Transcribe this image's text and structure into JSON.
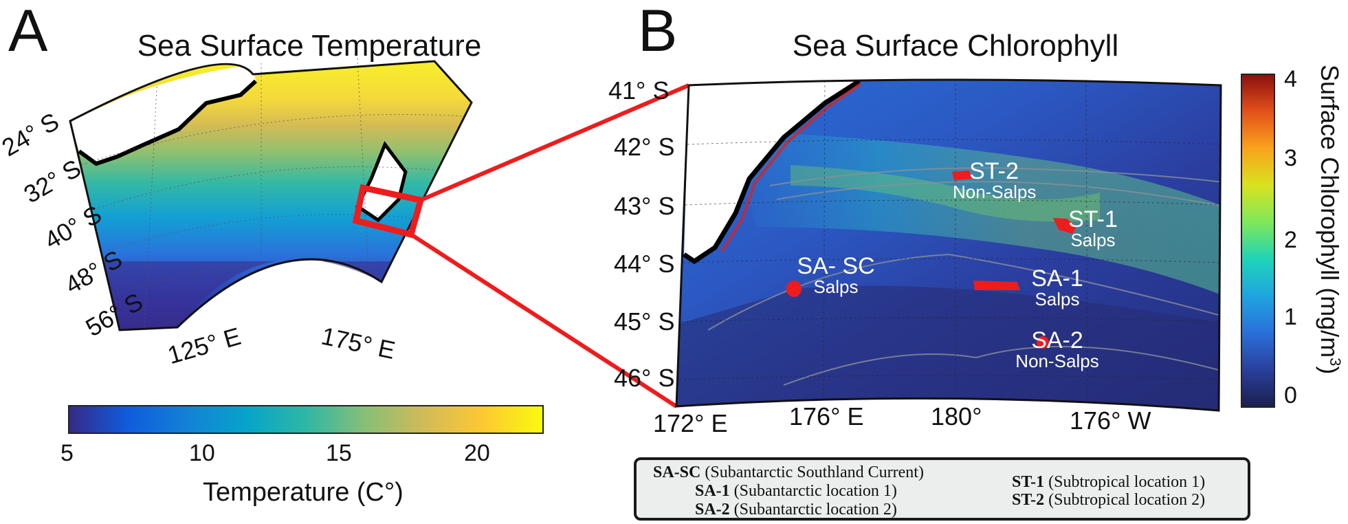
{
  "panel_a": {
    "letter": "A",
    "title": "Sea Surface Temperature",
    "lat_labels": [
      "24° S",
      "32° S",
      "40° S",
      "48° S",
      "56° S"
    ],
    "lon_labels": [
      "125° E",
      "175° E"
    ],
    "colorbar": {
      "ticks": [
        "5",
        "10",
        "15",
        "20"
      ],
      "label": "Temperature (C°)",
      "colors": [
        "#352a87",
        "#0f5cdd",
        "#1481d6",
        "#06a4ca",
        "#2eb7a4",
        "#87bf77",
        "#d1bb59",
        "#fec832",
        "#f9fb0e"
      ]
    }
  },
  "panel_b": {
    "letter": "B",
    "title": "Sea Surface Chlorophyll",
    "lat_labels": [
      "41° S",
      "42° S",
      "43° S",
      "44° S",
      "45° S",
      "46° S"
    ],
    "lon_labels": [
      "172° E",
      "176° E",
      "180°",
      "176° W"
    ],
    "colorbar": {
      "ticks": [
        "0",
        "1",
        "2",
        "3",
        "4"
      ],
      "label": "Surface Chlorophyll (mg/m",
      "label_sup": "3",
      "label_close": ")",
      "colors": [
        "#1b1f4d",
        "#2a3f9c",
        "#2a6fd9",
        "#1fa4e0",
        "#1fd3b8",
        "#7ee85a",
        "#d9e21f",
        "#f9a21c",
        "#e2501a",
        "#8a0f0f"
      ]
    },
    "sites": [
      {
        "code": "ST-2",
        "sub": "Non-Salps",
        "group": "Non-Salps"
      },
      {
        "code": "ST-1",
        "sub": "Salps",
        "group": "Salps"
      },
      {
        "code": "SA- SC",
        "sub": "Salps",
        "group": "Salps"
      },
      {
        "code": "SA-1",
        "sub": "Salps",
        "group": "Salps"
      },
      {
        "code": "SA-2",
        "sub": "Non-Salps",
        "group": "Non-Salps"
      }
    ]
  },
  "legend": {
    "items": [
      {
        "code": "SA-SC",
        "desc": "(Subantarctic Southland Current)"
      },
      {
        "code": "SA-1",
        "desc": "(Subantarctic location 1)"
      },
      {
        "code": "SA-2",
        "desc": "(Subantarctic location 2)"
      },
      {
        "code": "ST-1",
        "desc": "(Subtropical location 1)"
      },
      {
        "code": "ST-2",
        "desc": "(Subtropical location 2)"
      }
    ]
  },
  "colors": {
    "study_region": "#ee1c1c",
    "site_marker": "#ee1c1c",
    "land": "#ffffff",
    "coastline": "#000000",
    "site_text": "#ffffff"
  }
}
